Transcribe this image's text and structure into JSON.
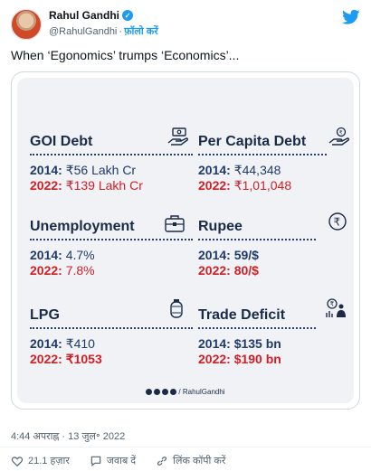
{
  "header": {
    "display_name": "Rahul Gandhi",
    "handle": "@RahulGandhi",
    "separator": "·",
    "follow_label": "फ़ॉलो करें"
  },
  "tweet": {
    "text": "When ‘Egonomics’ trumps ‘Economics’..."
  },
  "card": {
    "stats": [
      {
        "title": "GOI Debt",
        "year1": "2014:",
        "value1": "₹56 Lakh Cr",
        "year2": "2022:",
        "value2": "₹139 Lakh Cr",
        "icon": "hand-money-icon"
      },
      {
        "title": "Per Capita Debt",
        "year1": "2014:",
        "value1": "₹44,348",
        "year2": "2022:",
        "value2": "₹1,01,048",
        "icon": "hand-rupee-coin-icon"
      },
      {
        "title": "Unemployment",
        "year1": "2014:",
        "value1": "4.7%",
        "year2": "2022:",
        "value2": "7.8%",
        "icon": "briefcase-icon"
      },
      {
        "title": "Rupee",
        "year1": "2014:",
        "value1": "59/$",
        "year2": "2022:",
        "value2": "80/$",
        "icon": "rupee-coin-icon"
      },
      {
        "title": "LPG",
        "year1": "2014:",
        "value1": "₹410",
        "year2": "2022:",
        "value2": "₹1053",
        "icon": "gas-cylinder-icon"
      },
      {
        "title": "Trade Deficit",
        "year1": "2014:",
        "value1": "$135 bn",
        "year2": "2022:",
        "value2": "$190 bn",
        "icon": "trade-person-icon"
      }
    ],
    "footer_handle": "/ RahulGandhi"
  },
  "meta": {
    "timestamp": "4:44 अपराह्न · 13 जुल॰ 2022"
  },
  "actions": {
    "likes_count": "21.1 हज़ार",
    "reply_label": "जवाब दें",
    "copy_link_label": "लिंक कॉपी करें"
  },
  "colors": {
    "accent": "#1d9bf0",
    "year_2014": "#1f3a6b",
    "year_2022": "#d01f25"
  }
}
